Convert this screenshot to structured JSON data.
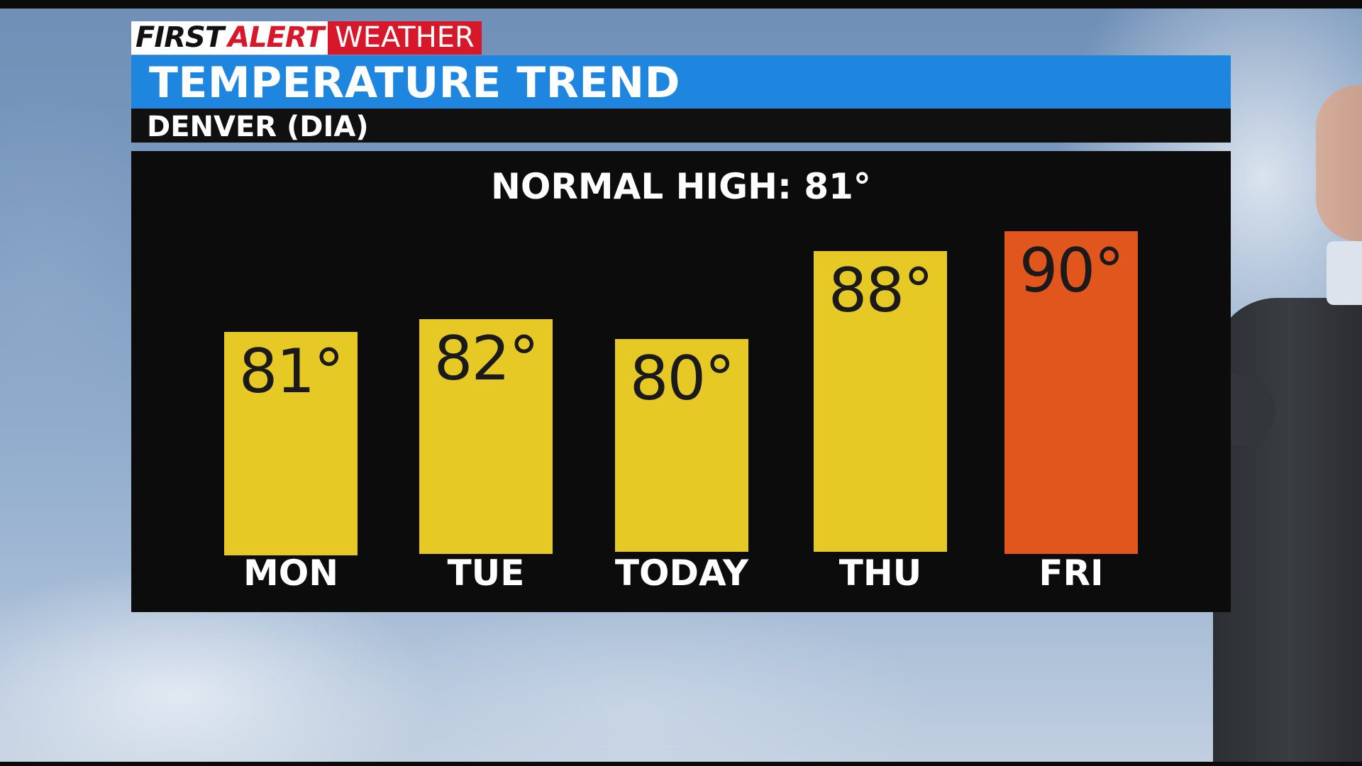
{
  "brand": {
    "first": "FIRST",
    "alert": "ALERT",
    "weather": "WEATHER"
  },
  "colors": {
    "title_bar": "#1f86e0",
    "brand_red": "#d7182a",
    "bar_warm": "#e6c924",
    "bar_hot": "#e0561c"
  },
  "chart_data": {
    "type": "bar",
    "title": "TEMPERATURE TREND",
    "subtitle": "DENVER (DIA)",
    "annotation": "NORMAL HIGH: 81°",
    "categories": [
      "MON",
      "TUE",
      "TODAY",
      "THU",
      "FRI"
    ],
    "values": [
      81,
      82,
      80,
      88,
      90
    ],
    "value_labels": [
      "81°",
      "82°",
      "80°",
      "88°",
      "90°"
    ],
    "bar_colors": [
      "#e6c924",
      "#e6c924",
      "#e6c924",
      "#e6c924",
      "#e0561c"
    ],
    "grid": false,
    "legend": "none"
  }
}
